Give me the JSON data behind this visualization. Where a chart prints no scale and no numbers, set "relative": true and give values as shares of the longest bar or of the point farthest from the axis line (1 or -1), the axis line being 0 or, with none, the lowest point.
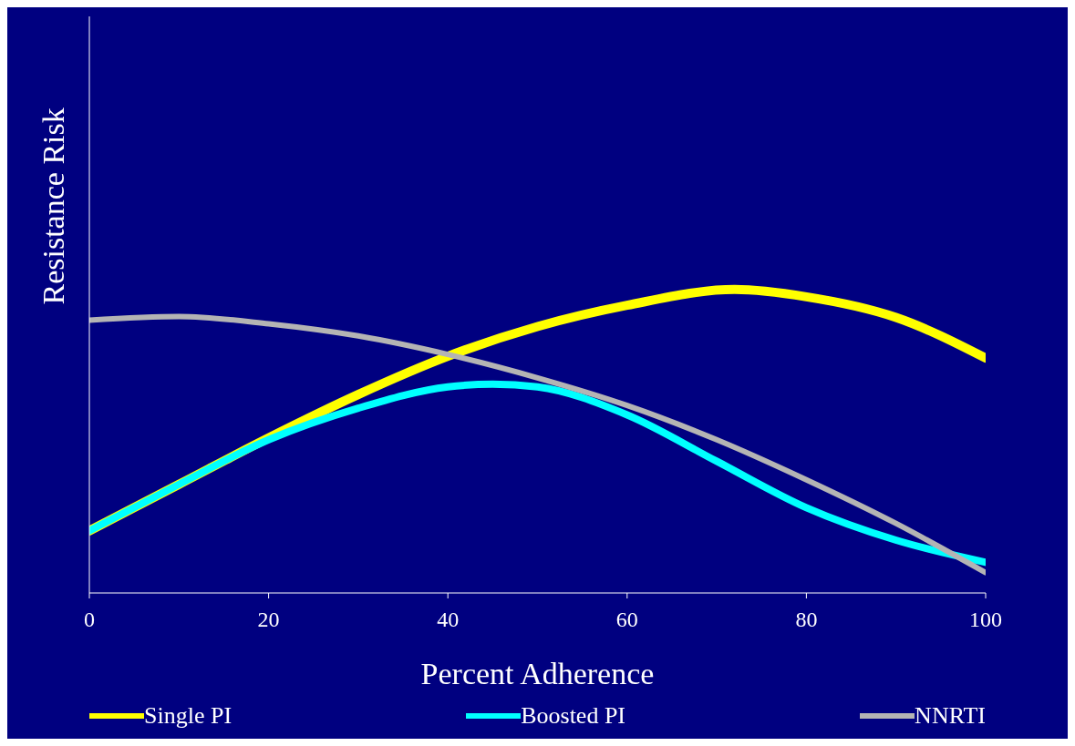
{
  "chart_data": {
    "type": "line",
    "relative": true,
    "xlabel": "Percent Adherence",
    "ylabel": "Resistance Risk",
    "xlim": [
      0,
      100
    ],
    "xticks": [
      0,
      20,
      40,
      60,
      80,
      100
    ],
    "legend": "bottom",
    "grid": false,
    "marker": "none",
    "line_style": "solid",
    "series": [
      {
        "name": "Single PI",
        "color": "#ffff00",
        "x": [
          0,
          10,
          20,
          30,
          40,
          50,
          60,
          72,
          80,
          90,
          100
        ],
        "values": [
          0.205,
          0.358,
          0.511,
          0.654,
          0.78,
          0.878,
          0.948,
          1,
          0.976,
          0.908,
          0.774
        ]
      },
      {
        "name": "Boosted PI",
        "color": "#00ffff",
        "x": [
          0,
          10,
          20,
          30,
          40,
          45,
          50,
          60,
          70,
          80,
          90,
          100
        ],
        "values": [
          0.205,
          0.358,
          0.505,
          0.609,
          0.679,
          0.688,
          0.679,
          0.587,
          0.434,
          0.281,
          0.174,
          0.101
        ]
      },
      {
        "name": "NNRTI",
        "color": "#b4b4b4",
        "x": [
          0,
          10,
          20,
          30,
          40,
          50,
          60,
          70,
          80,
          90,
          100
        ],
        "values": [
          0.899,
          0.911,
          0.887,
          0.847,
          0.786,
          0.709,
          0.618,
          0.505,
          0.373,
          0.229,
          0.067
        ]
      }
    ]
  }
}
